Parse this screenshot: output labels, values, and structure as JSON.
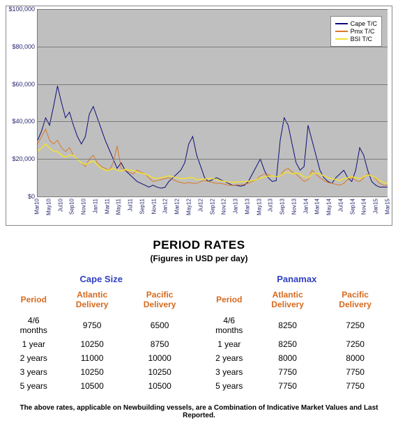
{
  "chart": {
    "type": "line",
    "background_color": "#bfbfbf",
    "grid_color": "#7a7a7a",
    "axis_label_color": "#26266f",
    "ylim": [
      0,
      100000
    ],
    "ytick_step": 20000,
    "yticks": [
      "$0",
      "$20,000",
      "$40,000",
      "$60,000",
      "$80,000",
      "$100,000"
    ],
    "xticks": [
      "Mar10",
      "May10",
      "Jul10",
      "Sep10",
      "Nov10",
      "Jan11",
      "Mar11",
      "May11",
      "Jul11",
      "Sep11",
      "Nov11",
      "Jan12",
      "Mar12",
      "May12",
      "Jul12",
      "Sep12",
      "Nov12",
      "Jan13",
      "Mar13",
      "May13",
      "Jul13",
      "Sep13",
      "Nov13",
      "Jan14",
      "Mar14",
      "May14",
      "Jul14",
      "Sep14",
      "Nov14",
      "Jan15",
      "Mar15"
    ],
    "tick_fontsize": 9,
    "legend": {
      "position": "top-right",
      "background": "#ffffff",
      "border": "#888888",
      "fontsize": 9,
      "items": [
        {
          "label": "Cape T/C",
          "color": "#0b0b7a"
        },
        {
          "label": "Pmx T/C",
          "color": "#d77a2a"
        },
        {
          "label": "BSI T/C",
          "color": "#f2e233"
        }
      ]
    },
    "series": [
      {
        "name": "Cape T/C",
        "color": "#0b0b7a",
        "line_width": 1,
        "values": [
          30000,
          35000,
          42000,
          38000,
          48000,
          59000,
          50000,
          42000,
          45000,
          38000,
          32000,
          28000,
          32000,
          44000,
          48000,
          42000,
          36000,
          30000,
          25000,
          20000,
          15000,
          18000,
          14000,
          12000,
          10000,
          8000,
          7000,
          6000,
          5000,
          6000,
          5000,
          4500,
          4800,
          8000,
          10000,
          12000,
          14000,
          18000,
          28000,
          32000,
          22000,
          16000,
          10000,
          8000,
          9000,
          10000,
          9000,
          8000,
          7000,
          6000,
          6000,
          5500,
          6000,
          8000,
          12000,
          16000,
          20000,
          14000,
          10000,
          8000,
          8500,
          30000,
          42000,
          38000,
          28000,
          18000,
          14000,
          16000,
          38000,
          30000,
          22000,
          14000,
          10000,
          8000,
          7000,
          10000,
          12000,
          14000,
          10000,
          8000,
          14000,
          26000,
          22000,
          14000,
          8000,
          6000,
          5000,
          5000,
          5000
        ]
      },
      {
        "name": "Pmx T/C",
        "color": "#d77a2a",
        "line_width": 1,
        "values": [
          28000,
          32000,
          36000,
          30000,
          28000,
          30000,
          26000,
          24000,
          26000,
          22000,
          20000,
          18000,
          16000,
          20000,
          22000,
          18000,
          16000,
          15000,
          14000,
          18000,
          27000,
          15000,
          14000,
          13000,
          12000,
          14000,
          13000,
          12000,
          10000,
          8000,
          8500,
          9000,
          9500,
          10000,
          9000,
          8000,
          7500,
          7000,
          7500,
          7000,
          7000,
          8000,
          8500,
          8000,
          7500,
          7000,
          7000,
          6500,
          6000,
          6000,
          6200,
          6300,
          6500,
          7000,
          8000,
          9000,
          11000,
          12000,
          11500,
          11000,
          10500,
          11000,
          14000,
          15000,
          13000,
          12000,
          10000,
          8000,
          9000,
          14000,
          12000,
          10000,
          8500,
          7500,
          7000,
          6500,
          6000,
          7000,
          9000,
          10000,
          8500,
          8000,
          10000,
          12000,
          11000,
          9500,
          7000,
          6000,
          6000
        ]
      },
      {
        "name": "BSI T/C",
        "color": "#f2e233",
        "line_width": 1.5,
        "values": [
          24000,
          26000,
          28000,
          26000,
          24000,
          24000,
          22000,
          21000,
          22000,
          22000,
          20000,
          18000,
          17000,
          18000,
          19000,
          17000,
          15000,
          14000,
          14000,
          15000,
          14000,
          13500,
          14500,
          14000,
          14000,
          13000,
          12500,
          12000,
          11000,
          10000,
          9500,
          10000,
          10500,
          11000,
          10500,
          10000,
          9500,
          9500,
          10000,
          10000,
          9000,
          9200,
          9300,
          9500,
          9500,
          9000,
          8500,
          8000,
          7800,
          7500,
          7700,
          7800,
          7900,
          8100,
          8500,
          9000,
          9800,
          10500,
          10800,
          11000,
          10500,
          11000,
          12500,
          13000,
          12000,
          12500,
          12000,
          10500,
          10000,
          12000,
          12500,
          12000,
          11000,
          10000,
          9500,
          9000,
          8500,
          9500,
          10000,
          10500,
          10000,
          9500,
          10500,
          11500,
          11000,
          10000,
          8500,
          7500,
          7000
        ]
      }
    ]
  },
  "rates": {
    "title": "PERIOD RATES",
    "subtitle": "(Figures in USD per day)",
    "header_color": "#d56a1f",
    "group_color": "#3040c0",
    "columns": [
      "Period",
      "Atlantic Delivery",
      "Pacific Delivery"
    ],
    "groups": [
      {
        "name": "Cape Size",
        "rows": [
          {
            "period": "4/6 months",
            "atlantic": "9750",
            "pacific": "6500"
          },
          {
            "period": "1 year",
            "atlantic": "10250",
            "pacific": "8750"
          },
          {
            "period": "2 years",
            "atlantic": "11000",
            "pacific": "10000"
          },
          {
            "period": "3 years",
            "atlantic": "10250",
            "pacific": "10250"
          },
          {
            "period": "5 years",
            "atlantic": "10500",
            "pacific": "10500"
          }
        ]
      },
      {
        "name": "Panamax",
        "rows": [
          {
            "period": "4/6 months",
            "atlantic": "8250",
            "pacific": "7250"
          },
          {
            "period": "1 year",
            "atlantic": "8250",
            "pacific": "7250"
          },
          {
            "period": "2 years",
            "atlantic": "8000",
            "pacific": "8000"
          },
          {
            "period": "3 years",
            "atlantic": "7750",
            "pacific": "7750"
          },
          {
            "period": "5 years",
            "atlantic": "7750",
            "pacific": "7750"
          }
        ]
      }
    ]
  },
  "footnote": "The above rates, applicable on Newbuilding vessels, are a Combination of Indicative Market Values and Last Reported."
}
